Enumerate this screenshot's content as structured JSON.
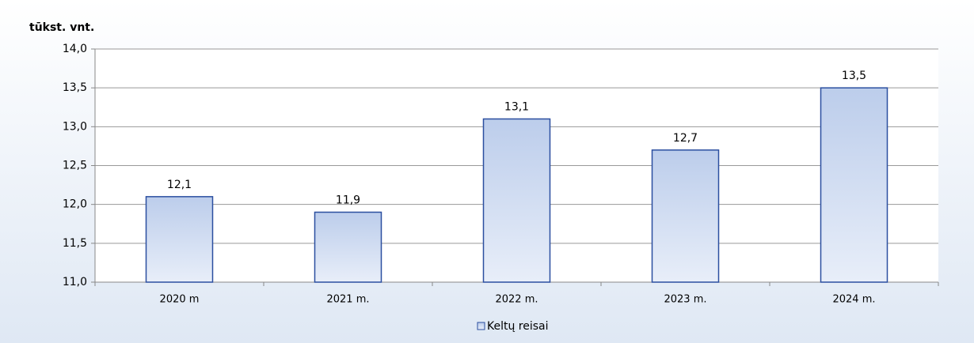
{
  "chart_data": {
    "type": "bar",
    "y_label": "tūkst. vnt.",
    "categories": [
      "2020 m",
      "2021 m.",
      "2022 m.",
      "2023 m.",
      "2024 m."
    ],
    "series": [
      {
        "name": "Keltų reisai",
        "color": "#2b4fa0",
        "values": [
          12.1,
          11.9,
          13.1,
          12.7,
          13.5
        ],
        "value_labels": [
          "12,1",
          "11,9",
          "13,1",
          "12,7",
          "13,5"
        ]
      }
    ],
    "ylim": [
      11,
      14
    ],
    "yticks": [
      {
        "value": 11,
        "label": "11,0"
      },
      {
        "value": 11.5,
        "label": "11,5"
      },
      {
        "value": 12,
        "label": "12,0"
      },
      {
        "value": 12.5,
        "label": "12,5"
      },
      {
        "value": 13,
        "label": "13,0"
      },
      {
        "value": 13.5,
        "label": "13,5"
      },
      {
        "value": 14,
        "label": "14,0"
      }
    ],
    "grid": true,
    "legend": "bottom"
  }
}
